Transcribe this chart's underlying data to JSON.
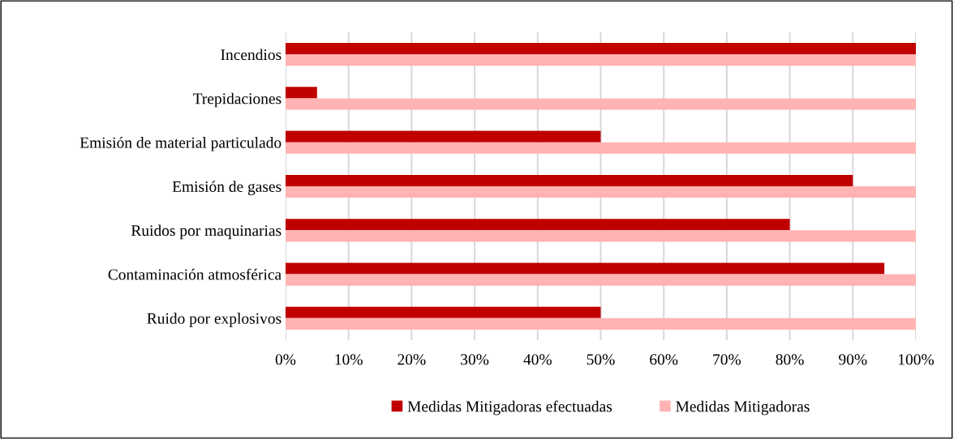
{
  "chart_data": {
    "type": "bar",
    "orientation": "horizontal",
    "categories": [
      "Incendios",
      "Trepidaciones",
      "Emisión de material particulado",
      "Emisión de gases",
      "Ruidos por maquinarias",
      "Contaminación atmosférica",
      "Ruido por explosivos"
    ],
    "series": [
      {
        "name": "Medidas Mitigadoras efectuadas",
        "color": "#c00000",
        "values": [
          100,
          5,
          50,
          90,
          80,
          95,
          50
        ]
      },
      {
        "name": "Medidas Mitigadoras",
        "color": "#ffb3b3",
        "values": [
          100,
          100,
          100,
          100,
          100,
          100,
          100
        ]
      }
    ],
    "xlim": [
      0,
      100
    ],
    "xticks": [
      {
        "value": 0,
        "label": "0%"
      },
      {
        "value": 10,
        "label": "10%"
      },
      {
        "value": 20,
        "label": "20%"
      },
      {
        "value": 30,
        "label": "30%"
      },
      {
        "value": 40,
        "label": "40%"
      },
      {
        "value": 50,
        "label": "50%"
      },
      {
        "value": 60,
        "label": "60%"
      },
      {
        "value": 70,
        "label": "70%"
      },
      {
        "value": 80,
        "label": "80%"
      },
      {
        "value": 90,
        "label": "90%"
      },
      {
        "value": 100,
        "label": "100%"
      }
    ],
    "grid": "x",
    "legend": "bottom"
  }
}
